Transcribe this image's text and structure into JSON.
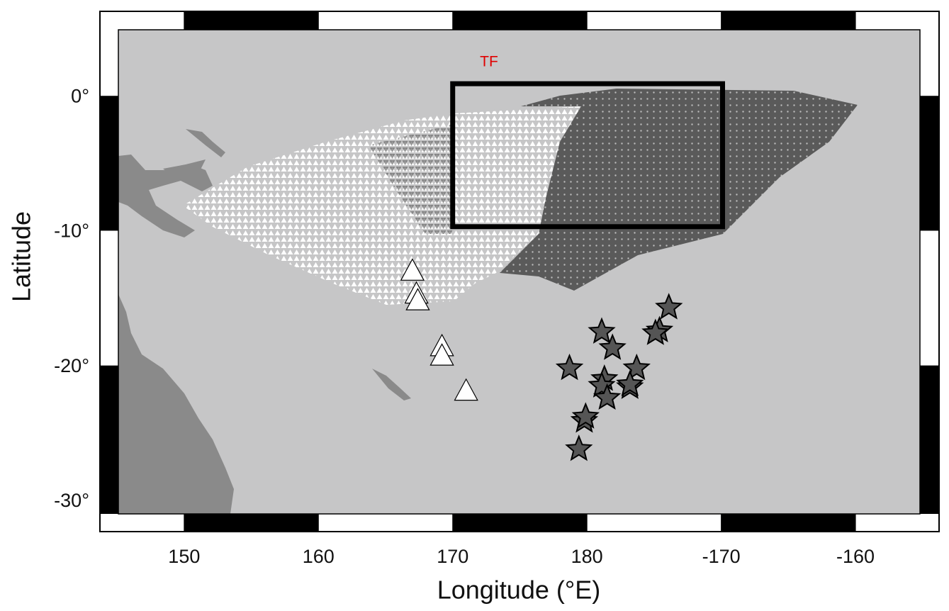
{
  "map": {
    "label_box": "TF",
    "xlabel": "Longitude  (°E)",
    "ylabel": "Latitude",
    "xlim": [
      145.1,
      204.8
    ],
    "ylim": [
      -31.0,
      4.9
    ],
    "xticks": [
      150,
      160,
      170,
      180,
      {
        "value": 190,
        "label": "-170"
      },
      {
        "value": 200,
        "label": "-160"
      }
    ],
    "yticks": [
      {
        "value": 0,
        "label": "0°"
      },
      {
        "value": -10,
        "label": "-10°"
      },
      {
        "value": -20,
        "label": "-20°"
      },
      {
        "value": -30,
        "label": "-30°"
      }
    ],
    "box": {
      "lon": [
        170,
        190.1
      ],
      "lat": [
        0.9,
        -9.7
      ]
    },
    "stations": [
      {
        "lon": 167.0,
        "lat": -13.0
      },
      {
        "lon": 167.3,
        "lat": -14.7
      },
      {
        "lon": 167.4,
        "lat": -15.2
      },
      {
        "lon": 169.2,
        "lat": -18.6
      },
      {
        "lon": 169.2,
        "lat": -19.3
      },
      {
        "lon": 171.0,
        "lat": -21.9
      }
    ],
    "events": [
      {
        "lon": 186.1,
        "lat": -15.7
      },
      {
        "lon": 185.4,
        "lat": -17.4
      },
      {
        "lon": 185.1,
        "lat": -17.6
      },
      {
        "lon": 181.1,
        "lat": -17.5
      },
      {
        "lon": 181.9,
        "lat": -18.7
      },
      {
        "lon": 178.7,
        "lat": -20.2
      },
      {
        "lon": 183.7,
        "lat": -20.2
      },
      {
        "lon": 181.3,
        "lat": -21.0
      },
      {
        "lon": 181.1,
        "lat": -21.5
      },
      {
        "lon": 183.2,
        "lat": -21.6
      },
      {
        "lon": 181.5,
        "lat": -22.4
      },
      {
        "lon": 179.8,
        "lat": -24.1
      },
      {
        "lon": 179.9,
        "lat": -23.8
      },
      {
        "lon": 179.4,
        "lat": -26.2
      },
      {
        "lon": 183.2,
        "lat": -21.4
      }
    ]
  }
}
